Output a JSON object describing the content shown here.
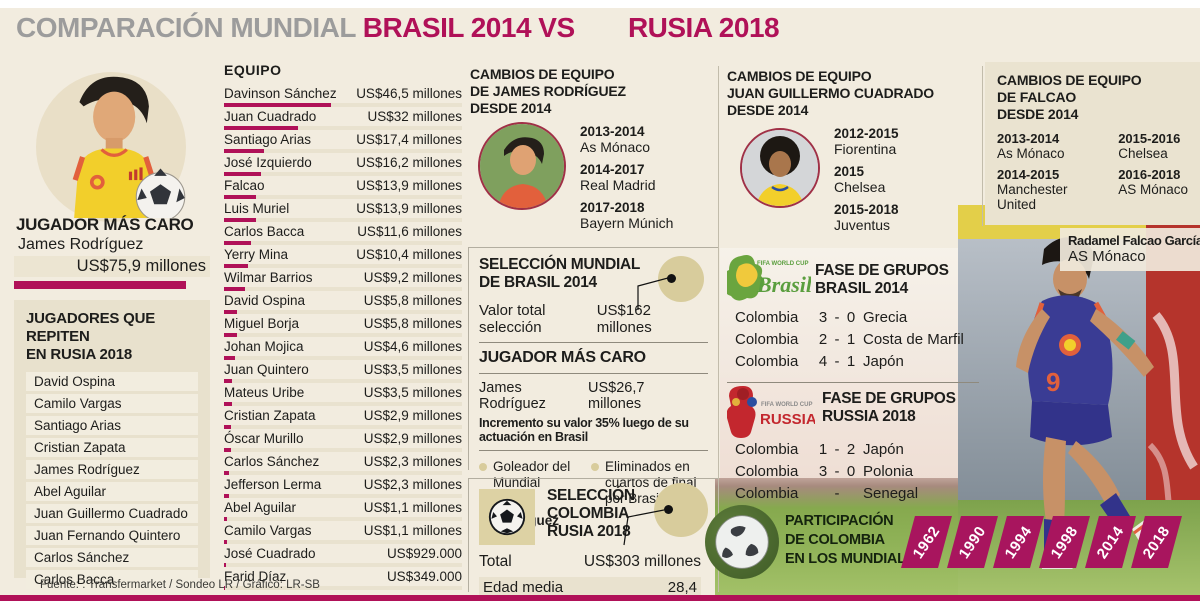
{
  "title": {
    "gray": "COMPARACIÓN MUNDIAL",
    "brasil": "BRASIL 2014 VS",
    "rusia": "RUSIA 2018"
  },
  "left_column": {
    "most_expensive": {
      "heading": "JUGADOR MÁS CARO",
      "player": "James Rodríguez",
      "value_label": "US$75,9 millones"
    },
    "repeating_players": {
      "heading_lines": [
        "JUGADORES QUE REPITEN",
        "EN RUSIA 2018"
      ],
      "players": [
        "David Ospina",
        "Camilo Vargas",
        "Santiago Arias",
        "Cristian Zapata",
        "James Rodríguez",
        "Abel Aguilar",
        "Juan Guillermo Cuadrado",
        "Juan Fernando Quintero",
        "Carlos Sánchez",
        "Carlos Bacca"
      ]
    }
  },
  "squad_table": {
    "heading": "EQUIPO",
    "max_value": 46.5,
    "rows": [
      {
        "name": "Davinson Sánchez",
        "value": 46.5,
        "label": "US$46,5 millones"
      },
      {
        "name": "Juan Cuadrado",
        "value": 32,
        "label": "US$32 millones"
      },
      {
        "name": "Santiago Arias",
        "value": 17.4,
        "label": "US$17,4 millones"
      },
      {
        "name": "José Izquierdo",
        "value": 16.2,
        "label": "US$16,2 millones"
      },
      {
        "name": "Falcao",
        "value": 13.9,
        "label": "US$13,9 millones"
      },
      {
        "name": "Luis Muriel",
        "value": 13.9,
        "label": "US$13,9 millones"
      },
      {
        "name": "Carlos Bacca",
        "value": 11.6,
        "label": "US$11,6 millones"
      },
      {
        "name": "Yerry Mina",
        "value": 10.4,
        "label": "US$10,4 millones"
      },
      {
        "name": "Wilmar Barrios",
        "value": 9.2,
        "label": "US$9,2 millones"
      },
      {
        "name": "David Ospina",
        "value": 5.8,
        "label": "US$5,8 millones"
      },
      {
        "name": "Miguel Borja",
        "value": 5.8,
        "label": "US$5,8 millones"
      },
      {
        "name": "Johan Mojica",
        "value": 4.6,
        "label": "US$4,6 millones"
      },
      {
        "name": "Juan Quintero",
        "value": 3.5,
        "label": "US$3,5 millones"
      },
      {
        "name": "Mateus Uribe",
        "value": 3.5,
        "label": "US$3,5 millones"
      },
      {
        "name": "Cristian Zapata",
        "value": 2.9,
        "label": "US$2,9 millones"
      },
      {
        "name": "Óscar Murillo",
        "value": 2.9,
        "label": "US$2,9 millones"
      },
      {
        "name": "Carlos Sánchez",
        "value": 2.3,
        "label": "US$2,3 millones"
      },
      {
        "name": "Jefferson Lerma",
        "value": 2.3,
        "label": "US$2,3 millones"
      },
      {
        "name": "Abel Aguilar",
        "value": 1.1,
        "label": "US$1,1 millones"
      },
      {
        "name": "Camilo Vargas",
        "value": 1.1,
        "label": "US$1,1 millones"
      },
      {
        "name": "José Cuadrado",
        "value": 0.929,
        "label": "US$929.000"
      },
      {
        "name": "Farid Díaz",
        "value": 0.349,
        "label": "US$349.000"
      }
    ]
  },
  "james_changes": {
    "lines": [
      "CAMBIOS DE EQUIPO",
      "DE JAMES RODRÍGUEZ",
      "DESDE 2014"
    ],
    "stints": [
      {
        "years": "2013-2014",
        "club": "As Mónaco"
      },
      {
        "years": "2014-2017",
        "club": "Real Madrid"
      },
      {
        "years": "2017-2018",
        "club": "Bayern Múnich"
      }
    ]
  },
  "cuadrado_changes": {
    "lines": [
      "CAMBIOS DE EQUIPO",
      "JUAN GUILLERMO CUADRADO",
      "DESDE 2014"
    ],
    "stints": [
      {
        "years": "2012-2015",
        "club": "Fiorentina"
      },
      {
        "years": "2015",
        "club": "Chelsea"
      },
      {
        "years": "2015-2018",
        "club": "Juventus"
      }
    ]
  },
  "falcao_changes": {
    "lines": [
      "CAMBIOS DE EQUIPO",
      "DE FALCAO",
      "DESDE 2014"
    ],
    "stints": [
      {
        "years": "2013-2014",
        "club": "As Mónaco"
      },
      {
        "years": "2014-2015",
        "club": "Manchester United"
      },
      {
        "years": "2015-2016",
        "club": "Chelsea"
      },
      {
        "years": "2016-2018",
        "club": "AS Mónaco"
      }
    ]
  },
  "falcao_caption": {
    "name": "Radamel Falcao García",
    "team": "AS Mónaco"
  },
  "brasil_2014_summary": {
    "heading_lines": [
      "SELECCIÓN MUNDIAL",
      "DE BRASIL 2014"
    ],
    "total_label": "Valor total selección",
    "total_value": "US$162 millones",
    "most_expensive_heading": "JUGADOR MÁS CARO",
    "player": "James Rodríguez",
    "player_value": "US$26,7 millones",
    "note": "Incremento su valor 35% luego de su actuación en Brasil",
    "bullet_goleador": "Goleador del Mundial",
    "bullet_goleador_player": "James Rodríguez",
    "bullet_eliminated": "Eliminados en cuartos de final por Brasil (2-1)"
  },
  "colombia_2018_summary": {
    "heading_lines": [
      "SELECCIÓN",
      "COLOMBIA",
      "RUSIA 2018"
    ],
    "total_label": "Total",
    "total_value": "US$303 millones",
    "age_label": "Edad media",
    "age_value": "28,4"
  },
  "group_stage_brasil": {
    "heading_lines": [
      "FASE DE GRUPOS",
      "BRASIL 2014"
    ],
    "logo": {
      "top": "FIFA WORLD CUP",
      "name": "Brasil"
    },
    "matches": [
      {
        "home": "Colombia",
        "home_score": "3",
        "away_score": "0",
        "away": "Grecia"
      },
      {
        "home": "Colombia",
        "home_score": "2",
        "away_score": "1",
        "away": "Costa de Marfil"
      },
      {
        "home": "Colombia",
        "home_score": "4",
        "away_score": "1",
        "away": "Japón"
      }
    ]
  },
  "group_stage_russia": {
    "heading_lines": [
      "FASE DE GRUPOS",
      "RUSSIA 2018"
    ],
    "logo": {
      "top": "FIFA WORLD CUP",
      "name": "RUSSIA 2018"
    },
    "matches": [
      {
        "home": "Colombia",
        "home_score": "1",
        "away_score": "2",
        "away": "Japón"
      },
      {
        "home": "Colombia",
        "home_score": "3",
        "away_score": "0",
        "away": "Polonia"
      },
      {
        "home": "Colombia",
        "home_score": "",
        "away_score": "",
        "away": "Senegal"
      }
    ]
  },
  "participation": {
    "heading_lines": [
      "PARTICIPACIÓN",
      "DE COLOMBIA",
      "EN LOS MUNDIALES"
    ],
    "years": [
      "1962",
      "1990",
      "1994",
      "1998",
      "2014",
      "2018"
    ]
  },
  "footer": {
    "source": "Fuente: : Transfermarket / Sondeo LR / Gráfico: LR-SB"
  },
  "colors": {
    "accent": "#b01158",
    "background": "#f2ecdf",
    "panel": "#e8e1cd",
    "tan_circle": "#d8cc9c",
    "title_gray": "#9c9c9c"
  },
  "chart_data": [
    {
      "type": "bar",
      "orientation": "horizontal",
      "title": "EQUIPO — valor de jugadores (millones US$)",
      "categories": [
        "Davinson Sánchez",
        "Juan Cuadrado",
        "Santiago Arias",
        "José Izquierdo",
        "Falcao",
        "Luis Muriel",
        "Carlos Bacca",
        "Yerry Mina",
        "Wilmar Barrios",
        "David Ospina",
        "Miguel Borja",
        "Johan Mojica",
        "Juan Quintero",
        "Mateus Uribe",
        "Cristian Zapata",
        "Óscar Murillo",
        "Carlos Sánchez",
        "Jefferson Lerma",
        "Abel Aguilar",
        "Camilo Vargas",
        "José Cuadrado",
        "Farid Díaz"
      ],
      "values": [
        46.5,
        32,
        17.4,
        16.2,
        13.9,
        13.9,
        11.6,
        10.4,
        9.2,
        5.8,
        5.8,
        4.6,
        3.5,
        3.5,
        2.9,
        2.9,
        2.3,
        2.3,
        1.1,
        1.1,
        0.929,
        0.349
      ],
      "value_labels": [
        "US$46,5 millones",
        "US$32 millones",
        "US$17,4 millones",
        "US$16,2 millones",
        "US$13,9 millones",
        "US$13,9 millones",
        "US$11,6 millones",
        "US$10,4 millones",
        "US$9,2 millones",
        "US$5,8 millones",
        "US$5,8 millones",
        "US$4,6 millones",
        "US$3,5 millones",
        "US$3,5 millones",
        "US$2,9 millones",
        "US$2,9 millones",
        "US$2,3 millones",
        "US$2,3 millones",
        "US$1,1 millones",
        "US$1,1 millones",
        "US$929.000",
        "US$349.000"
      ],
      "xlim": [
        0,
        46.5
      ]
    },
    {
      "type": "table",
      "title": "FASE DE GRUPOS BRASIL 2014",
      "rows": [
        [
          "Colombia",
          "3",
          "0",
          "Grecia"
        ],
        [
          "Colombia",
          "2",
          "1",
          "Costa de Marfil"
        ],
        [
          "Colombia",
          "4",
          "1",
          "Japón"
        ]
      ]
    },
    {
      "type": "table",
      "title": "FASE DE GRUPOS RUSSIA 2018",
      "rows": [
        [
          "Colombia",
          "1",
          "2",
          "Japón"
        ],
        [
          "Colombia",
          "3",
          "0",
          "Polonia"
        ],
        [
          "Colombia",
          "-",
          "-",
          "Senegal"
        ]
      ]
    },
    {
      "type": "table",
      "title": "PARTICIPACIÓN DE COLOMBIA EN LOS MUNDIALES",
      "rows": [
        [
          "1962",
          "1990",
          "1994",
          "1998",
          "2014",
          "2018"
        ]
      ]
    }
  ]
}
